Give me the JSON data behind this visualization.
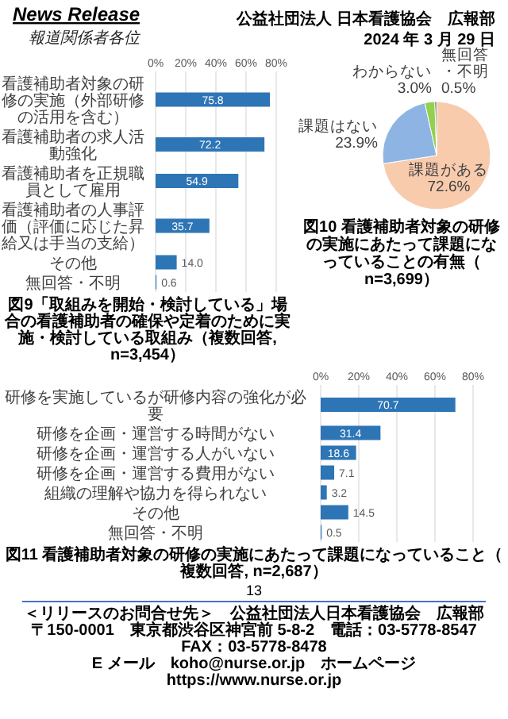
{
  "chart_data": [
    {
      "type": "other",
      "annotations": [
        "News Release",
        "報道関係者各位",
        "公益社団法人 日本看護協会　広報部",
        "2024 年 3 月 29 日"
      ]
    },
    {
      "type": "bar",
      "orientation": "horizontal",
      "title": "図9「取組みを開始・検討している」場合の看護補助者の確保や定着のために実施・検討している取組み（複数回答, n=3,454）",
      "categories": [
        "看護補助者対象の研修の実施（外部研修の活用を含む）",
        "看護補助者の求人活動強化",
        "看護補助者を正規職員として雇用",
        "看護補助者の人事評価（評価に応じた昇給又は手当の支給）",
        "その他",
        "無回答・不明"
      ],
      "values": [
        75.8,
        72.2,
        54.9,
        35.7,
        14.0,
        0.6
      ],
      "value_labels": [
        "75.8",
        "72.2",
        "54.9",
        "35.7",
        "14.0",
        "0.6"
      ],
      "color": "#2e75b6",
      "xlim": [
        0,
        80
      ],
      "xticks": [
        {
          "value": 0,
          "label": "0%"
        },
        {
          "value": 20,
          "label": "20%"
        },
        {
          "value": 40,
          "label": "40%"
        },
        {
          "value": 60,
          "label": "60%"
        },
        {
          "value": 80,
          "label": "80%"
        }
      ],
      "grid": "x"
    },
    {
      "type": "pie",
      "title": "図10 看護補助者対象の研修の実施にあたって課題になっていることの有無（n=3,699）",
      "categories": [
        "課題がある",
        "課題はない",
        "わからない",
        "無回答・不明"
      ],
      "values": [
        72.6,
        23.9,
        3.0,
        0.5
      ],
      "value_labels": [
        "72.6%",
        "23.9%",
        "3.0%",
        "0.5%"
      ],
      "colors": [
        "#f8cbad",
        "#8eb4e3",
        "#92d050",
        "#375623"
      ]
    },
    {
      "type": "bar",
      "orientation": "horizontal",
      "title": "図11 看護補助者対象の研修の実施にあたって課題になっていること（複数回答, n=2,687）",
      "categories": [
        "研修を実施しているが研修内容の強化が必要",
        "研修を企画・運営する時間がない",
        "研修を企画・運営する人がいない",
        "研修を企画・運営する費用がない",
        "組織の理解や協力を得られない",
        "その他",
        "無回答・不明"
      ],
      "values": [
        70.7,
        31.4,
        18.6,
        7.1,
        3.2,
        14.5,
        0.5
      ],
      "value_labels": [
        "70.7",
        "31.4",
        "18.6",
        "7.1",
        "3.2",
        "14.5",
        "0.5"
      ],
      "color": "#2e75b6",
      "xlim": [
        0,
        80
      ],
      "xticks": [
        {
          "value": 0,
          "label": "0%"
        },
        {
          "value": 20,
          "label": "20%"
        },
        {
          "value": 40,
          "label": "40%"
        },
        {
          "value": 60,
          "label": "60%"
        },
        {
          "value": 80,
          "label": "80%"
        }
      ],
      "grid": "x"
    },
    {
      "type": "other",
      "annotations": [
        "13",
        "＜リリースのお問合せ先＞　公益社団法人日本看護協会　広報部",
        "〒150-0001　東京都渋谷区神宮前 5-8-2　電話：03-5778-8547　FAX：03-5778-8478",
        "E メール　koho@nurse.or.jp　ホームページ　https://www.nurse.or.jp"
      ]
    }
  ]
}
